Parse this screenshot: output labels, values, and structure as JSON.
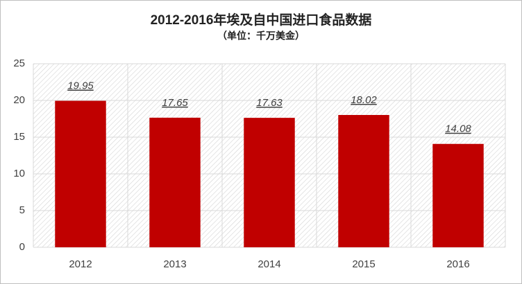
{
  "chart_data": {
    "type": "bar",
    "title": "2012-2016年埃及自中国进口食品数据",
    "subtitle": "（单位：千万美金）",
    "categories": [
      "2012",
      "2013",
      "2014",
      "2015",
      "2016"
    ],
    "values": [
      19.95,
      17.65,
      17.63,
      18.02,
      14.08
    ],
    "color": "#c00000",
    "ylim": [
      0,
      25
    ],
    "yticks": [
      0,
      5,
      10,
      15,
      20,
      25
    ],
    "grid": true
  }
}
